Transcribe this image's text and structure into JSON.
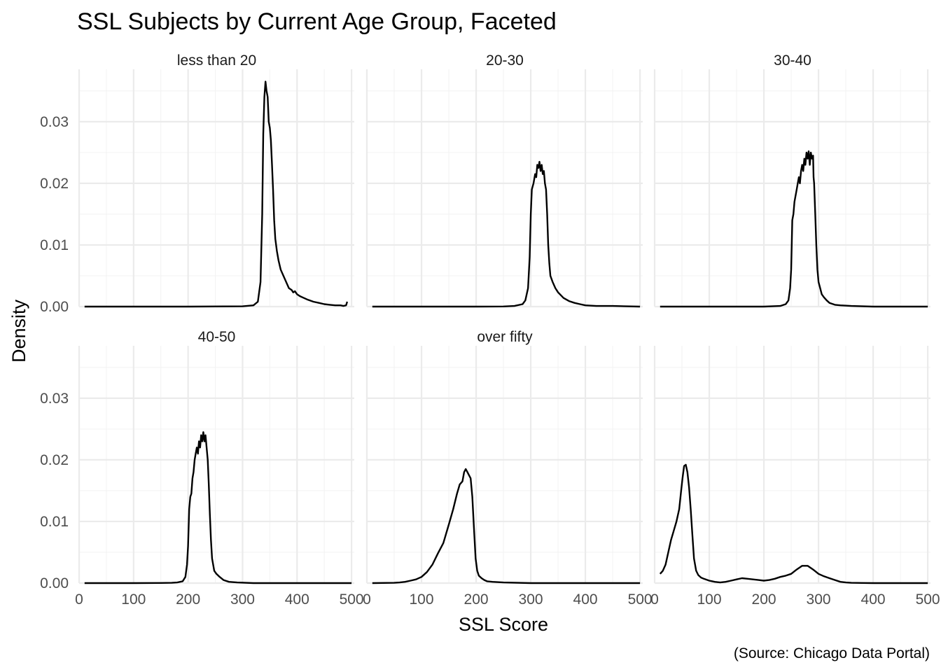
{
  "chart_data": {
    "type": "line",
    "title": "SSL Subjects by Current Age Group, Faceted",
    "xlabel": "SSL Score",
    "ylabel": "Density",
    "caption": "(Source: Chicago Data Portal)",
    "xlim": [
      0,
      505
    ],
    "ylim": [
      0,
      0.0385
    ],
    "x_ticks": [
      0,
      100,
      200,
      300,
      400,
      500
    ],
    "y_ticks": [
      0.0,
      0.01,
      0.02,
      0.03
    ],
    "y_tick_labels": [
      "0.00",
      "0.01",
      "0.02",
      "0.03"
    ],
    "grid": true,
    "facets": [
      {
        "label": "less than 20",
        "points": [
          [
            10,
            0
          ],
          [
            100,
            0
          ],
          [
            200,
            0
          ],
          [
            300,
            5e-05
          ],
          [
            320,
            0.0002
          ],
          [
            328,
            0.0008
          ],
          [
            333,
            0.004
          ],
          [
            336,
            0.015
          ],
          [
            338,
            0.028
          ],
          [
            340,
            0.034
          ],
          [
            342,
            0.0365
          ],
          [
            344,
            0.035
          ],
          [
            346,
            0.034
          ],
          [
            348,
            0.03
          ],
          [
            350,
            0.029
          ],
          [
            352,
            0.027
          ],
          [
            354,
            0.023
          ],
          [
            356,
            0.019
          ],
          [
            358,
            0.014
          ],
          [
            360,
            0.011
          ],
          [
            363,
            0.009
          ],
          [
            366,
            0.0075
          ],
          [
            370,
            0.006
          ],
          [
            375,
            0.005
          ],
          [
            380,
            0.004
          ],
          [
            385,
            0.003
          ],
          [
            390,
            0.0027
          ],
          [
            393,
            0.0023
          ],
          [
            396,
            0.0025
          ],
          [
            400,
            0.002
          ],
          [
            405,
            0.0017
          ],
          [
            410,
            0.0015
          ],
          [
            420,
            0.0011
          ],
          [
            430,
            0.0008
          ],
          [
            440,
            0.0006
          ],
          [
            450,
            0.0004
          ],
          [
            460,
            0.0003
          ],
          [
            470,
            0.0002
          ],
          [
            480,
            0.0002
          ],
          [
            485,
            0.0001
          ],
          [
            490,
            0.0002
          ],
          [
            492,
            0.0008
          ]
        ]
      },
      {
        "label": "20-30",
        "points": [
          [
            10,
            0
          ],
          [
            100,
            0
          ],
          [
            200,
            0
          ],
          [
            250,
            2e-05
          ],
          [
            270,
            0.0001
          ],
          [
            285,
            0.0004
          ],
          [
            290,
            0.001
          ],
          [
            295,
            0.003
          ],
          [
            298,
            0.008
          ],
          [
            300,
            0.015
          ],
          [
            302,
            0.019
          ],
          [
            305,
            0.02
          ],
          [
            308,
            0.0215
          ],
          [
            310,
            0.021
          ],
          [
            312,
            0.023
          ],
          [
            314,
            0.0225
          ],
          [
            316,
            0.0235
          ],
          [
            318,
            0.022
          ],
          [
            320,
            0.023
          ],
          [
            322,
            0.0215
          ],
          [
            324,
            0.022
          ],
          [
            326,
            0.02
          ],
          [
            328,
            0.019
          ],
          [
            330,
            0.015
          ],
          [
            332,
            0.01
          ],
          [
            334,
            0.007
          ],
          [
            336,
            0.005
          ],
          [
            340,
            0.004
          ],
          [
            345,
            0.003
          ],
          [
            350,
            0.0023
          ],
          [
            360,
            0.0014
          ],
          [
            370,
            0.0009
          ],
          [
            380,
            0.0006
          ],
          [
            390,
            0.0004
          ],
          [
            400,
            0.0002
          ],
          [
            420,
            0.0001
          ],
          [
            450,
            0.0001
          ],
          [
            500,
            0
          ]
        ]
      },
      {
        "label": "30-40",
        "points": [
          [
            10,
            0
          ],
          [
            100,
            0
          ],
          [
            200,
            0
          ],
          [
            230,
            0.0001
          ],
          [
            240,
            0.0004
          ],
          [
            245,
            0.001
          ],
          [
            248,
            0.003
          ],
          [
            250,
            0.006
          ],
          [
            252,
            0.014
          ],
          [
            254,
            0.015
          ],
          [
            256,
            0.017
          ],
          [
            258,
            0.018
          ],
          [
            260,
            0.019
          ],
          [
            262,
            0.02
          ],
          [
            264,
            0.021
          ],
          [
            266,
            0.02
          ],
          [
            268,
            0.022
          ],
          [
            270,
            0.023
          ],
          [
            272,
            0.022
          ],
          [
            274,
            0.024
          ],
          [
            276,
            0.023
          ],
          [
            278,
            0.025
          ],
          [
            280,
            0.024
          ],
          [
            282,
            0.0252
          ],
          [
            284,
            0.023
          ],
          [
            286,
            0.025
          ],
          [
            288,
            0.024
          ],
          [
            290,
            0.0245
          ],
          [
            291,
            0.021
          ],
          [
            292,
            0.02
          ],
          [
            294,
            0.015
          ],
          [
            296,
            0.01
          ],
          [
            298,
            0.006
          ],
          [
            300,
            0.004
          ],
          [
            303,
            0.003
          ],
          [
            306,
            0.002
          ],
          [
            310,
            0.0015
          ],
          [
            315,
            0.001
          ],
          [
            320,
            0.0006
          ],
          [
            330,
            0.0003
          ],
          [
            340,
            0.0002
          ],
          [
            360,
            0.0001
          ],
          [
            400,
            0
          ],
          [
            500,
            0
          ]
        ]
      },
      {
        "label": "40-50",
        "points": [
          [
            10,
            0
          ],
          [
            100,
            0
          ],
          [
            150,
            2e-05
          ],
          [
            170,
            5e-05
          ],
          [
            180,
            0.0001
          ],
          [
            190,
            0.0003
          ],
          [
            195,
            0.001
          ],
          [
            198,
            0.003
          ],
          [
            200,
            0.006
          ],
          [
            202,
            0.012
          ],
          [
            204,
            0.014
          ],
          [
            206,
            0.0145
          ],
          [
            208,
            0.017
          ],
          [
            210,
            0.018
          ],
          [
            212,
            0.02
          ],
          [
            214,
            0.021
          ],
          [
            216,
            0.022
          ],
          [
            218,
            0.021
          ],
          [
            220,
            0.023
          ],
          [
            222,
            0.022
          ],
          [
            224,
            0.024
          ],
          [
            226,
            0.023
          ],
          [
            228,
            0.0245
          ],
          [
            230,
            0.023
          ],
          [
            232,
            0.024
          ],
          [
            234,
            0.022
          ],
          [
            236,
            0.02
          ],
          [
            238,
            0.016
          ],
          [
            240,
            0.011
          ],
          [
            242,
            0.007
          ],
          [
            244,
            0.004
          ],
          [
            248,
            0.002
          ],
          [
            252,
            0.0015
          ],
          [
            258,
            0.001
          ],
          [
            265,
            0.0005
          ],
          [
            275,
            0.0002
          ],
          [
            290,
            0.0001
          ],
          [
            320,
            0
          ],
          [
            400,
            0
          ],
          [
            500,
            0
          ]
        ]
      },
      {
        "label": "over fifty",
        "points": [
          [
            10,
            0
          ],
          [
            50,
            5e-05
          ],
          [
            60,
            0.0001
          ],
          [
            70,
            0.0002
          ],
          [
            80,
            0.0004
          ],
          [
            90,
            0.0006
          ],
          [
            100,
            0.001
          ],
          [
            110,
            0.0018
          ],
          [
            120,
            0.003
          ],
          [
            130,
            0.0048
          ],
          [
            140,
            0.0065
          ],
          [
            150,
            0.0095
          ],
          [
            158,
            0.012
          ],
          [
            165,
            0.0145
          ],
          [
            170,
            0.016
          ],
          [
            175,
            0.0165
          ],
          [
            178,
            0.018
          ],
          [
            181,
            0.0185
          ],
          [
            184,
            0.018
          ],
          [
            187,
            0.0175
          ],
          [
            190,
            0.017
          ],
          [
            193,
            0.014
          ],
          [
            196,
            0.009
          ],
          [
            199,
            0.004
          ],
          [
            202,
            0.002
          ],
          [
            205,
            0.0012
          ],
          [
            210,
            0.0008
          ],
          [
            215,
            0.0005
          ],
          [
            220,
            0.0003
          ],
          [
            230,
            0.0002
          ],
          [
            250,
            0.0001
          ],
          [
            300,
            0
          ],
          [
            400,
            0
          ],
          [
            500,
            0
          ]
        ]
      },
      {
        "label": "",
        "points": [
          [
            10,
            0.0015
          ],
          [
            15,
            0.002
          ],
          [
            20,
            0.003
          ],
          [
            25,
            0.005
          ],
          [
            30,
            0.007
          ],
          [
            35,
            0.0085
          ],
          [
            40,
            0.01
          ],
          [
            45,
            0.012
          ],
          [
            48,
            0.0145
          ],
          [
            51,
            0.017
          ],
          [
            54,
            0.019
          ],
          [
            57,
            0.0192
          ],
          [
            60,
            0.018
          ],
          [
            63,
            0.0155
          ],
          [
            66,
            0.012
          ],
          [
            69,
            0.008
          ],
          [
            72,
            0.004
          ],
          [
            76,
            0.002
          ],
          [
            80,
            0.0013
          ],
          [
            85,
            0.0009
          ],
          [
            90,
            0.0007
          ],
          [
            100,
            0.0004
          ],
          [
            110,
            0.0002
          ],
          [
            120,
            0.0001
          ],
          [
            130,
            0.0002
          ],
          [
            140,
            0.0004
          ],
          [
            150,
            0.0006
          ],
          [
            160,
            0.0008
          ],
          [
            170,
            0.0007
          ],
          [
            180,
            0.0006
          ],
          [
            190,
            0.0005
          ],
          [
            200,
            0.0004
          ],
          [
            210,
            0.0005
          ],
          [
            220,
            0.0007
          ],
          [
            230,
            0.001
          ],
          [
            240,
            0.0012
          ],
          [
            250,
            0.0015
          ],
          [
            260,
            0.0022
          ],
          [
            270,
            0.0028
          ],
          [
            280,
            0.0028
          ],
          [
            290,
            0.0022
          ],
          [
            300,
            0.0015
          ],
          [
            310,
            0.0011
          ],
          [
            320,
            0.0008
          ],
          [
            330,
            0.0005
          ],
          [
            340,
            0.0002
          ],
          [
            350,
            0.0001
          ],
          [
            360,
            5e-05
          ],
          [
            380,
            2e-05
          ],
          [
            400,
            0
          ],
          [
            500,
            0
          ]
        ]
      }
    ]
  }
}
